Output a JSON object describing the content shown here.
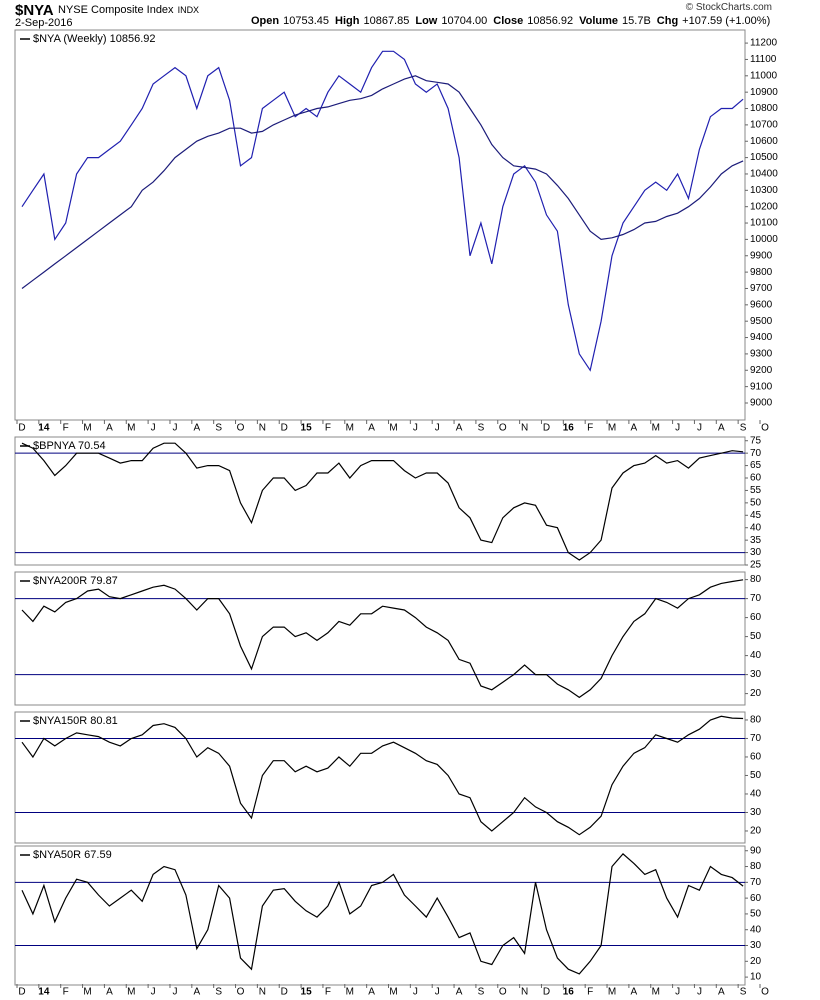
{
  "header": {
    "symbol": "$NYA",
    "name": "NYSE Composite Index",
    "exchange": "INDX",
    "date": "2-Sep-2016",
    "copyright": "© StockCharts.com",
    "stats": [
      {
        "label": "Open",
        "value": "10753.45"
      },
      {
        "label": "High",
        "value": "10867.85"
      },
      {
        "label": "Low",
        "value": "10704.00"
      },
      {
        "label": "Close",
        "value": "10856.92"
      },
      {
        "label": "Volume",
        "value": "15.7B"
      },
      {
        "label": "Chg",
        "value": "+107.59 (+1.00%)"
      }
    ]
  },
  "chart_data": [
    {
      "type": "line",
      "title": "$NYA (Weekly) 10856.92",
      "categories": [
        "D",
        null,
        "14",
        null,
        "F",
        null,
        "M",
        null,
        "A",
        null,
        "M",
        null,
        "J",
        null,
        "J",
        null,
        "A",
        null,
        "S",
        null,
        "O",
        null,
        "N",
        null,
        "D",
        null,
        "15",
        null,
        "F",
        null,
        "M",
        null,
        "A",
        null,
        "M",
        null,
        "J",
        null,
        "J",
        null,
        "A",
        null,
        "S",
        null,
        "O",
        null,
        "N",
        null,
        "D",
        null,
        "16",
        null,
        "F",
        null,
        "M",
        null,
        "A",
        null,
        "M",
        null,
        "J",
        null,
        "J",
        null,
        "A",
        null,
        "S",
        null,
        "O",
        null
      ],
      "series": [
        {
          "name": "Close",
          "color": "#2020b0",
          "values": [
            10200,
            10300,
            10400,
            10000,
            10100,
            10400,
            10500,
            10500,
            10550,
            10600,
            10700,
            10800,
            10950,
            11000,
            11050,
            11000,
            10800,
            11000,
            11050,
            10850,
            10450,
            10500,
            10800,
            10850,
            10900,
            10750,
            10800,
            10750,
            10900,
            11000,
            10950,
            10900,
            11050,
            11150,
            11150,
            11100,
            10950,
            10900,
            10950,
            10800,
            10500,
            9900,
            10100,
            9850,
            10200,
            10400,
            10450,
            10350,
            10150,
            10050,
            9600,
            9300,
            9200,
            9500,
            9900,
            10100,
            10200,
            10300,
            10350,
            10300,
            10400,
            10250,
            10550,
            10750,
            10800,
            10800,
            10856.92,
            null,
            null,
            null
          ]
        },
        {
          "name": "MA",
          "color": "#1c1c7a",
          "values": [
            9700,
            9750,
            9800,
            9850,
            9900,
            9950,
            10000,
            10050,
            10100,
            10150,
            10200,
            10300,
            10350,
            10420,
            10500,
            10550,
            10600,
            10630,
            10650,
            10680,
            10680,
            10650,
            10660,
            10700,
            10730,
            10760,
            10780,
            10800,
            10810,
            10830,
            10850,
            10860,
            10880,
            10920,
            10950,
            10980,
            11000,
            10970,
            10960,
            10950,
            10900,
            10800,
            10700,
            10580,
            10500,
            10450,
            10440,
            10430,
            10400,
            10330,
            10250,
            10150,
            10050,
            10000,
            10010,
            10030,
            10060,
            10100,
            10110,
            10140,
            10160,
            10200,
            10250,
            10320,
            10400,
            10450,
            10480,
            null,
            null,
            null
          ]
        }
      ],
      "ylim": [
        8896,
        11280
      ],
      "yticks": [
        9000,
        9100,
        9200,
        9300,
        9400,
        9500,
        9600,
        9700,
        9800,
        9900,
        10000,
        10100,
        10200,
        10300,
        10400,
        10500,
        10600,
        10700,
        10800,
        10900,
        11000,
        11100,
        11200
      ]
    },
    {
      "type": "line",
      "title": "$BPNYA 70.54",
      "series": [
        {
          "name": "$BPNYA",
          "color": "#000000",
          "values": [
            74,
            72,
            67,
            61,
            65,
            70,
            70,
            70,
            68,
            66,
            67,
            67,
            72,
            74,
            74,
            70,
            64,
            65,
            65,
            63,
            50,
            42,
            55,
            60,
            60,
            55,
            57,
            62,
            62,
            66,
            60,
            65,
            67,
            67,
            67,
            63,
            60,
            62,
            62,
            58,
            48,
            44,
            35,
            34,
            44,
            48,
            50,
            49,
            41,
            40,
            30,
            27,
            30,
            35,
            56,
            62,
            65,
            66,
            69,
            66,
            67,
            64,
            68,
            69,
            70,
            71,
            70.54,
            null,
            null,
            null
          ]
        }
      ],
      "ylim": [
        25,
        76.5
      ],
      "yticks": [
        25,
        30,
        35,
        40,
        45,
        50,
        55,
        60,
        65,
        70,
        75
      ],
      "hlines": [
        70,
        30
      ],
      "hline_color": "#00007f"
    },
    {
      "type": "line",
      "title": "$NYA200R 79.87",
      "series": [
        {
          "name": "$NYA200R",
          "color": "#000000",
          "values": [
            64,
            58,
            66,
            63,
            68,
            70,
            74,
            75,
            71,
            70,
            72,
            74,
            76,
            77,
            75,
            70,
            64,
            70,
            70,
            62,
            45,
            33,
            50,
            55,
            55,
            50,
            52,
            48,
            52,
            58,
            56,
            62,
            62,
            66,
            65,
            64,
            60,
            55,
            52,
            48,
            38,
            36,
            24,
            22,
            26,
            30,
            35,
            30,
            30,
            25,
            22,
            18,
            22,
            28,
            40,
            50,
            58,
            62,
            70,
            68,
            65,
            70,
            72,
            76,
            78,
            79,
            79.87,
            null,
            null,
            null
          ]
        }
      ],
      "ylim": [
        14,
        84
      ],
      "yticks": [
        20,
        30,
        40,
        50,
        60,
        70,
        80
      ],
      "hlines": [
        70,
        30
      ],
      "hline_color": "#00007f"
    },
    {
      "type": "line",
      "title": "$NYA150R 80.81",
      "series": [
        {
          "name": "$NYA150R",
          "color": "#000000",
          "values": [
            68,
            60,
            70,
            66,
            70,
            73,
            72,
            71,
            68,
            66,
            70,
            72,
            77,
            78,
            76,
            70,
            60,
            65,
            62,
            55,
            35,
            27,
            50,
            58,
            58,
            52,
            55,
            52,
            54,
            60,
            55,
            62,
            62,
            66,
            68,
            65,
            62,
            58,
            56,
            50,
            40,
            38,
            25,
            20,
            25,
            30,
            38,
            33,
            30,
            25,
            22,
            18,
            22,
            28,
            45,
            55,
            62,
            65,
            72,
            70,
            68,
            72,
            75,
            80,
            82,
            81,
            80.81,
            null,
            null,
            null
          ]
        }
      ],
      "ylim": [
        13.5,
        84.3
      ],
      "yticks": [
        20,
        30,
        40,
        50,
        60,
        70,
        80
      ],
      "hlines": [
        70,
        30
      ],
      "hline_color": "#00007f"
    },
    {
      "type": "line",
      "title": "$NYA50R 67.59",
      "series": [
        {
          "name": "$NYA50R",
          "color": "#000000",
          "values": [
            65,
            50,
            68,
            45,
            60,
            72,
            70,
            62,
            55,
            60,
            65,
            58,
            75,
            80,
            78,
            62,
            28,
            40,
            68,
            60,
            22,
            15,
            55,
            65,
            66,
            58,
            52,
            48,
            55,
            70,
            50,
            55,
            68,
            70,
            75,
            62,
            55,
            48,
            60,
            48,
            35,
            38,
            20,
            18,
            30,
            35,
            25,
            70,
            40,
            22,
            15,
            12,
            20,
            30,
            80,
            88,
            82,
            75,
            78,
            60,
            48,
            68,
            65,
            80,
            75,
            73,
            67.59,
            null,
            null,
            null
          ]
        }
      ],
      "ylim": [
        5,
        93
      ],
      "yticks": [
        10,
        20,
        30,
        40,
        50,
        60,
        70,
        80,
        90
      ],
      "hlines": [
        70,
        30
      ],
      "hline_color": "#00007f"
    }
  ]
}
